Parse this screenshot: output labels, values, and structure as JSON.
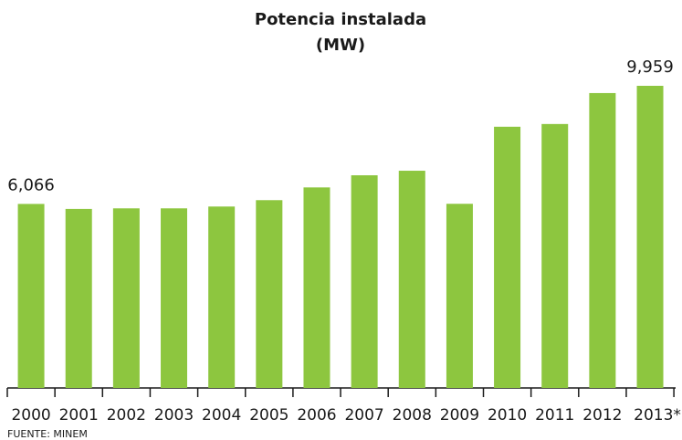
{
  "chart_data": {
    "type": "bar",
    "title": "Potencia instalada",
    "subtitle": "(MW)",
    "categories": [
      "2000",
      "2001",
      "2002",
      "2003",
      "2004",
      "2005",
      "2006",
      "2007",
      "2008",
      "2009",
      "2010",
      "2011",
      "2012",
      "2013*"
    ],
    "values": [
      6066,
      5900,
      5920,
      5920,
      5980,
      6190,
      6610,
      7010,
      7160,
      6070,
      8610,
      8700,
      9720,
      9959
    ],
    "value_labels": [
      "6,066",
      null,
      null,
      null,
      null,
      null,
      null,
      null,
      null,
      null,
      null,
      null,
      null,
      "9,959"
    ],
    "color": "#8dc63f",
    "source": "FUENTE: MINEM"
  }
}
